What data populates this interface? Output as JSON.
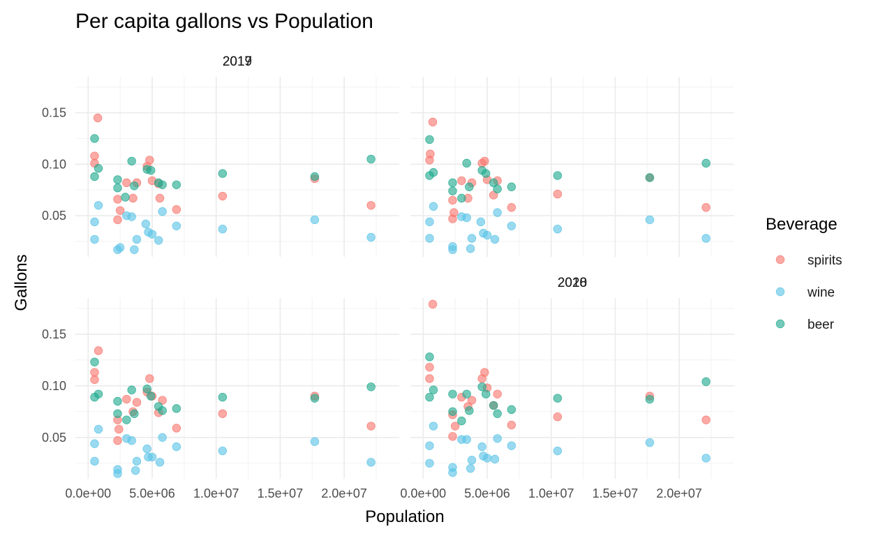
{
  "chart_data": {
    "type": "scatter",
    "title": "Per capita gallons vs Population",
    "xlabel": "Population",
    "ylabel": "Gallons",
    "xlim": [
      -1000000,
      24300000
    ],
    "ylim": [
      0.01,
      0.185
    ],
    "x_ticks": [
      0,
      5000000,
      10000000,
      15000000,
      20000000
    ],
    "x_tick_labels": [
      "0.0e+00",
      "5.0e+06",
      "1.0e+07",
      "1.5e+07",
      "2.0e+07"
    ],
    "y_ticks": [
      0.05,
      0.1,
      0.15
    ],
    "y_tick_labels": [
      "0.05",
      "0.10",
      "0.15"
    ],
    "grid": true,
    "legend": {
      "title": "Beverage",
      "position": "right",
      "items": [
        {
          "label": "spirits",
          "color": "#F8766D"
        },
        {
          "label": "wine",
          "color": "#5BC4E6"
        },
        {
          "label": "beer",
          "color": "#1EA98E"
        }
      ]
    },
    "panels": [
      {
        "label": "2017",
        "series": [
          {
            "name": "spirits",
            "points": [
              [
                500000,
                0.108
              ],
              [
                500000,
                0.101
              ],
              [
                750000,
                0.145
              ],
              [
                2300000,
                0.066
              ],
              [
                2300000,
                0.046
              ],
              [
                2500000,
                0.055
              ],
              [
                3000000,
                0.082
              ],
              [
                3500000,
                0.067
              ],
              [
                3800000,
                0.082
              ],
              [
                4600000,
                0.098
              ],
              [
                4800000,
                0.104
              ],
              [
                5000000,
                0.084
              ],
              [
                5500000,
                0.081
              ],
              [
                5600000,
                0.067
              ],
              [
                6900000,
                0.056
              ],
              [
                10500000,
                0.069
              ],
              [
                17700000,
                0.086
              ],
              [
                22100000,
                0.06
              ]
            ]
          },
          {
            "name": "wine",
            "points": [
              [
                500000,
                0.044
              ],
              [
                500000,
                0.027
              ],
              [
                800000,
                0.06
              ],
              [
                2300000,
                0.017
              ],
              [
                2500000,
                0.019
              ],
              [
                3000000,
                0.05
              ],
              [
                3400000,
                0.049
              ],
              [
                3600000,
                0.017
              ],
              [
                3800000,
                0.027
              ],
              [
                4500000,
                0.042
              ],
              [
                4700000,
                0.034
              ],
              [
                5000000,
                0.032
              ],
              [
                5500000,
                0.026
              ],
              [
                5800000,
                0.054
              ],
              [
                6900000,
                0.04
              ],
              [
                10500000,
                0.037
              ],
              [
                17700000,
                0.046
              ],
              [
                22100000,
                0.029
              ]
            ]
          },
          {
            "name": "beer",
            "points": [
              [
                500000,
                0.125
              ],
              [
                500000,
                0.088
              ],
              [
                800000,
                0.096
              ],
              [
                2300000,
                0.085
              ],
              [
                2300000,
                0.077
              ],
              [
                2900000,
                0.068
              ],
              [
                3400000,
                0.103
              ],
              [
                3600000,
                0.079
              ],
              [
                4600000,
                0.095
              ],
              [
                4900000,
                0.094
              ],
              [
                5500000,
                0.082
              ],
              [
                5800000,
                0.08
              ],
              [
                6900000,
                0.08
              ],
              [
                10500000,
                0.091
              ],
              [
                17700000,
                0.088
              ],
              [
                22100000,
                0.105
              ]
            ]
          }
        ]
      },
      {
        "label": "2018",
        "series": [
          {
            "name": "spirits",
            "points": [
              [
                500000,
                0.104
              ],
              [
                550000,
                0.11
              ],
              [
                750000,
                0.141
              ],
              [
                2300000,
                0.065
              ],
              [
                2300000,
                0.047
              ],
              [
                2400000,
                0.053
              ],
              [
                3000000,
                0.084
              ],
              [
                3500000,
                0.067
              ],
              [
                3800000,
                0.082
              ],
              [
                4600000,
                0.101
              ],
              [
                4800000,
                0.103
              ],
              [
                5000000,
                0.085
              ],
              [
                5500000,
                0.07
              ],
              [
                5800000,
                0.084
              ],
              [
                6900000,
                0.058
              ],
              [
                10500000,
                0.071
              ],
              [
                17700000,
                0.087
              ],
              [
                22100000,
                0.058
              ]
            ]
          },
          {
            "name": "wine",
            "points": [
              [
                500000,
                0.044
              ],
              [
                500000,
                0.028
              ],
              [
                800000,
                0.059
              ],
              [
                2300000,
                0.02
              ],
              [
                2300000,
                0.017
              ],
              [
                3000000,
                0.049
              ],
              [
                3400000,
                0.048
              ],
              [
                3700000,
                0.018
              ],
              [
                3800000,
                0.028
              ],
              [
                4500000,
                0.044
              ],
              [
                4700000,
                0.033
              ],
              [
                5000000,
                0.031
              ],
              [
                5600000,
                0.027
              ],
              [
                5800000,
                0.053
              ],
              [
                6900000,
                0.04
              ],
              [
                10500000,
                0.037
              ],
              [
                17700000,
                0.046
              ],
              [
                22100000,
                0.028
              ]
            ]
          },
          {
            "name": "beer",
            "points": [
              [
                500000,
                0.124
              ],
              [
                500000,
                0.089
              ],
              [
                800000,
                0.092
              ],
              [
                2300000,
                0.082
              ],
              [
                2300000,
                0.074
              ],
              [
                3000000,
                0.067
              ],
              [
                3400000,
                0.101
              ],
              [
                3600000,
                0.078
              ],
              [
                4600000,
                0.094
              ],
              [
                4900000,
                0.091
              ],
              [
                5500000,
                0.082
              ],
              [
                5800000,
                0.076
              ],
              [
                6900000,
                0.078
              ],
              [
                10500000,
                0.089
              ],
              [
                17700000,
                0.087
              ],
              [
                22100000,
                0.101
              ]
            ]
          }
        ]
      },
      {
        "label": "2019",
        "series": [
          {
            "name": "spirits",
            "points": [
              [
                500000,
                0.113
              ],
              [
                500000,
                0.106
              ],
              [
                800000,
                0.134
              ],
              [
                2300000,
                0.067
              ],
              [
                2300000,
                0.047
              ],
              [
                2400000,
                0.058
              ],
              [
                3000000,
                0.087
              ],
              [
                3500000,
                0.075
              ],
              [
                3800000,
                0.084
              ],
              [
                4600000,
                0.094
              ],
              [
                4800000,
                0.107
              ],
              [
                5000000,
                0.09
              ],
              [
                5500000,
                0.074
              ],
              [
                5800000,
                0.086
              ],
              [
                6900000,
                0.059
              ],
              [
                10500000,
                0.073
              ],
              [
                17700000,
                0.09
              ],
              [
                22100000,
                0.061
              ]
            ]
          },
          {
            "name": "wine",
            "points": [
              [
                500000,
                0.044
              ],
              [
                500000,
                0.027
              ],
              [
                800000,
                0.058
              ],
              [
                2300000,
                0.019
              ],
              [
                2300000,
                0.015
              ],
              [
                3000000,
                0.049
              ],
              [
                3400000,
                0.047
              ],
              [
                3700000,
                0.018
              ],
              [
                3800000,
                0.027
              ],
              [
                4600000,
                0.039
              ],
              [
                4700000,
                0.031
              ],
              [
                5000000,
                0.031
              ],
              [
                5600000,
                0.026
              ],
              [
                5800000,
                0.05
              ],
              [
                6900000,
                0.041
              ],
              [
                10500000,
                0.037
              ],
              [
                17700000,
                0.046
              ],
              [
                22100000,
                0.026
              ]
            ]
          },
          {
            "name": "beer",
            "points": [
              [
                500000,
                0.123
              ],
              [
                500000,
                0.089
              ],
              [
                800000,
                0.092
              ],
              [
                2300000,
                0.085
              ],
              [
                2300000,
                0.073
              ],
              [
                3000000,
                0.067
              ],
              [
                3400000,
                0.096
              ],
              [
                3600000,
                0.073
              ],
              [
                4600000,
                0.097
              ],
              [
                4900000,
                0.09
              ],
              [
                5500000,
                0.08
              ],
              [
                5800000,
                0.076
              ],
              [
                6900000,
                0.078
              ],
              [
                10500000,
                0.089
              ],
              [
                17700000,
                0.088
              ],
              [
                22100000,
                0.099
              ]
            ]
          }
        ]
      },
      {
        "label": "2020",
        "series": [
          {
            "name": "spirits",
            "points": [
              [
                500000,
                0.118
              ],
              [
                500000,
                0.107
              ],
              [
                750000,
                0.179
              ],
              [
                2300000,
                0.072
              ],
              [
                2300000,
                0.051
              ],
              [
                2500000,
                0.061
              ],
              [
                3000000,
                0.089
              ],
              [
                3500000,
                0.08
              ],
              [
                3800000,
                0.086
              ],
              [
                4600000,
                0.107
              ],
              [
                4800000,
                0.113
              ],
              [
                5000000,
                0.098
              ],
              [
                5500000,
                0.081
              ],
              [
                5800000,
                0.092
              ],
              [
                6900000,
                0.062
              ],
              [
                10500000,
                0.07
              ],
              [
                17700000,
                0.09
              ],
              [
                22100000,
                0.067
              ]
            ]
          },
          {
            "name": "wine",
            "points": [
              [
                500000,
                0.042
              ],
              [
                500000,
                0.025
              ],
              [
                800000,
                0.061
              ],
              [
                2300000,
                0.021
              ],
              [
                2300000,
                0.016
              ],
              [
                3000000,
                0.048
              ],
              [
                3400000,
                0.048
              ],
              [
                3700000,
                0.02
              ],
              [
                3800000,
                0.028
              ],
              [
                4600000,
                0.041
              ],
              [
                4700000,
                0.032
              ],
              [
                5000000,
                0.03
              ],
              [
                5600000,
                0.029
              ],
              [
                5800000,
                0.049
              ],
              [
                6900000,
                0.042
              ],
              [
                10500000,
                0.037
              ],
              [
                17700000,
                0.045
              ],
              [
                22100000,
                0.03
              ]
            ]
          },
          {
            "name": "beer",
            "points": [
              [
                500000,
                0.128
              ],
              [
                500000,
                0.089
              ],
              [
                800000,
                0.096
              ],
              [
                2300000,
                0.092
              ],
              [
                2300000,
                0.075
              ],
              [
                3000000,
                0.066
              ],
              [
                3400000,
                0.092
              ],
              [
                3600000,
                0.076
              ],
              [
                4600000,
                0.099
              ],
              [
                4900000,
                0.092
              ],
              [
                5500000,
                0.081
              ],
              [
                5800000,
                0.073
              ],
              [
                6900000,
                0.077
              ],
              [
                10500000,
                0.088
              ],
              [
                17700000,
                0.087
              ],
              [
                22100000,
                0.104
              ]
            ]
          }
        ]
      }
    ]
  }
}
